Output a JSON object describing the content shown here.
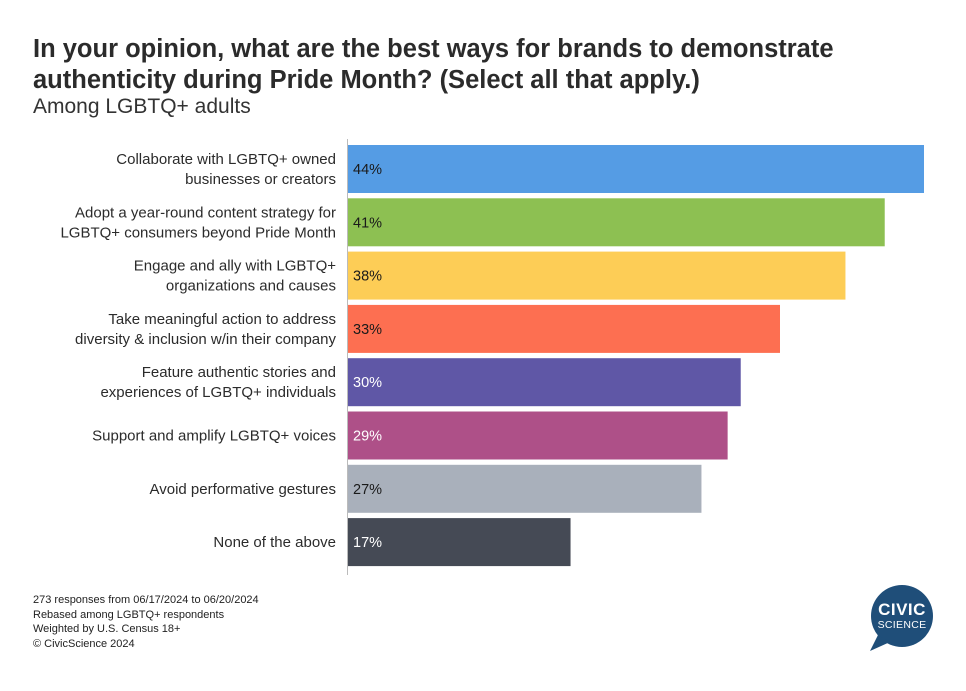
{
  "chart_data": {
    "type": "bar",
    "orientation": "horizontal",
    "title": "In your opinion, what are the best ways for brands to demonstrate authenticity during Pride Month? (Select all that apply.)",
    "subtitle": "Among LGBTQ+ adults",
    "categories": [
      [
        "Collaborate with LGBTQ+ owned",
        "businesses or creators"
      ],
      [
        "Adopt a year-round content strategy for",
        "LGBTQ+ consumers beyond Pride Month"
      ],
      [
        "Engage and ally with LGBTQ+",
        "organizations and causes"
      ],
      [
        "Take meaningful action to address",
        "diversity & inclusion w/in their company"
      ],
      [
        "Feature authentic stories and",
        "experiences of LGBTQ+ individuals"
      ],
      [
        "Support and amplify LGBTQ+ voices"
      ],
      [
        "Avoid performative gestures"
      ],
      [
        "None of the above"
      ]
    ],
    "values": [
      44,
      41,
      38,
      33,
      30,
      29,
      27,
      17
    ],
    "value_labels": [
      "44%",
      "41%",
      "38%",
      "33%",
      "30%",
      "29%",
      "27%",
      "17%"
    ],
    "colors": [
      "#559CE4",
      "#8DC052",
      "#FDCD56",
      "#FD6F51",
      "#5F57A6",
      "#AE5088",
      "#A9B0BB",
      "#454A55"
    ],
    "label_colors": [
      "#1a1a1a",
      "#1a1a1a",
      "#1a1a1a",
      "#1a1a1a",
      "#ffffff",
      "#ffffff",
      "#1a1a1a",
      "#ffffff"
    ],
    "xlim": [
      0,
      44
    ],
    "grid": false,
    "legend": "none"
  },
  "footer": {
    "lines": [
      "273 responses from 06/17/2024 to 06/20/2024",
      "Rebased among LGBTQ+ respondents",
      "Weighted by U.S. Census 18+",
      "© CivicScience 2024"
    ]
  },
  "logo": {
    "line1": "CIVIC",
    "line2": "SCIENCE",
    "color": "#1F4E79"
  }
}
